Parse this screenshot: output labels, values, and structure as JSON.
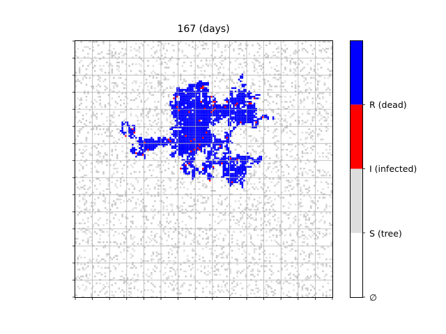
{
  "chart_data": {
    "type": "heatmap",
    "title": "167 (days)",
    "grid": true,
    "tick_labels_visible": false,
    "colormap": {
      "levels": [
        {
          "label": "∅",
          "color": "#ffffff"
        },
        {
          "label": "S (tree)",
          "color": "#dddddd"
        },
        {
          "label": "I (infected)",
          "color": "#ff0000"
        },
        {
          "label": "R (dead)",
          "color": "#0000ff"
        }
      ]
    },
    "state_counts_description_note": ""
  }
}
